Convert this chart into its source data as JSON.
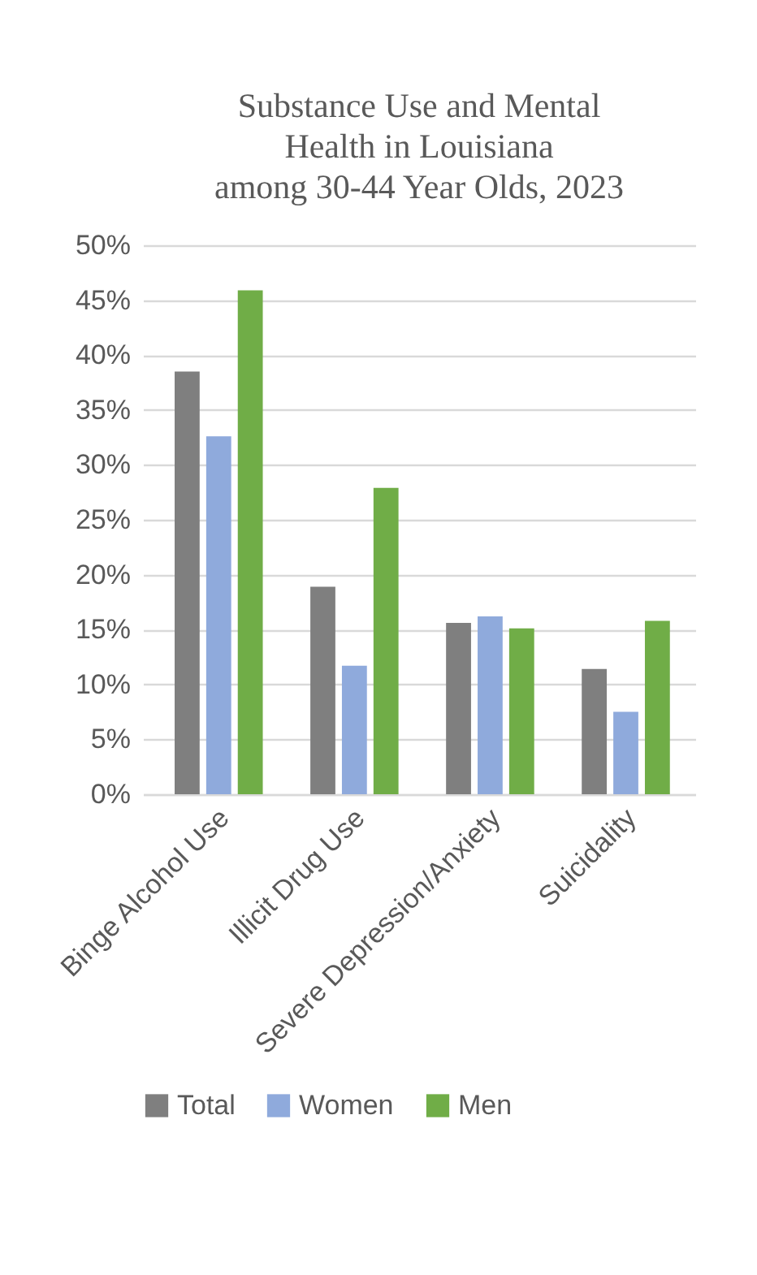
{
  "chart_data": {
    "type": "bar",
    "title": [
      "Substance Use and Mental",
      "Health in Louisiana",
      "among 30-44 Year Olds, 2023"
    ],
    "categories": [
      "Binge Alcohol Use",
      "Illicit Drug Use",
      "Severe Depression/Anxiety",
      "Suicidality"
    ],
    "series": [
      {
        "name": "Total",
        "color": "#7f7f7f",
        "values": [
          38.5,
          18.9,
          15.6,
          11.4
        ]
      },
      {
        "name": "Women",
        "color": "#8faadc",
        "values": [
          32.6,
          11.7,
          16.2,
          7.5
        ]
      },
      {
        "name": "Men",
        "color": "#70ad47",
        "values": [
          45.9,
          27.9,
          15.1,
          15.8
        ]
      }
    ],
    "ylim": [
      0,
      50
    ],
    "yticks": [
      {
        "value": 0,
        "label": "0%"
      },
      {
        "value": 5,
        "label": "5%"
      },
      {
        "value": 10,
        "label": "10%"
      },
      {
        "value": 15,
        "label": "15%"
      },
      {
        "value": 20,
        "label": "20%"
      },
      {
        "value": 25,
        "label": "25%"
      },
      {
        "value": 30,
        "label": "30%"
      },
      {
        "value": 35,
        "label": "35%"
      },
      {
        "value": 40,
        "label": "40%"
      },
      {
        "value": 45,
        "label": "45%"
      },
      {
        "value": 50,
        "label": "50%"
      }
    ],
    "grid": "y",
    "legend": "bottom"
  }
}
